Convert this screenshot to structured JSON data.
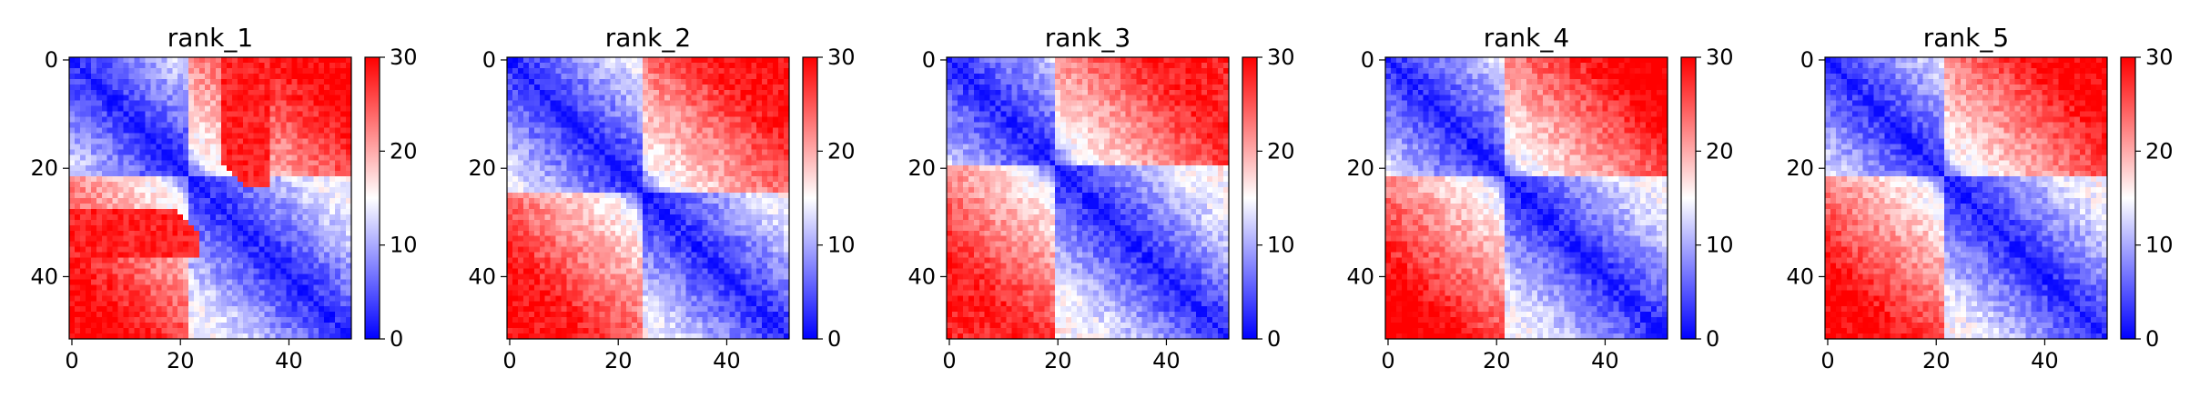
{
  "figure": {
    "colormap": "bwr",
    "colors": {
      "low": "#0000ff",
      "mid": "#ffffff",
      "high": "#ff0000"
    },
    "vmin": 0,
    "vmax": 30,
    "matrix_size": 52
  },
  "chart_data": [
    {
      "type": "heatmap",
      "title": "rank_1",
      "x_ticks": [
        "0",
        "20",
        "40"
      ],
      "y_ticks": [
        "0",
        "20",
        "40"
      ],
      "xlim": [
        0,
        51
      ],
      "ylim": [
        51,
        0
      ],
      "colorbar": {
        "range": [
          0,
          30
        ],
        "ticks": [
          "0",
          "10",
          "20",
          "30"
        ]
      },
      "values_description": "pairwise distance matrix, symmetric, near 0 on diagonal, high (~30) between residues 0-20 and 25-52 blocks",
      "blocks": [
        {
          "i_range": [
            0,
            22
          ],
          "j_range": [
            0,
            22
          ],
          "level": 8
        },
        {
          "i_range": [
            22,
            52
          ],
          "j_range": [
            22,
            52
          ],
          "level": 8
        },
        {
          "i_range": [
            0,
            22
          ],
          "j_range": [
            22,
            52
          ],
          "level": 26
        },
        {
          "i_range": [
            28,
            36
          ],
          "j_range": [
            0,
            22
          ],
          "level": 30
        }
      ]
    },
    {
      "type": "heatmap",
      "title": "rank_2",
      "x_ticks": [
        "0",
        "20",
        "40"
      ],
      "y_ticks": [
        "0",
        "20",
        "40"
      ],
      "xlim": [
        0,
        51
      ],
      "ylim": [
        51,
        0
      ],
      "colorbar": {
        "range": [
          0,
          30
        ],
        "ticks": [
          "0",
          "10",
          "20",
          "30"
        ]
      },
      "blocks": [
        {
          "i_range": [
            0,
            25
          ],
          "j_range": [
            0,
            25
          ],
          "level": 8
        },
        {
          "i_range": [
            25,
            52
          ],
          "j_range": [
            25,
            52
          ],
          "level": 8
        },
        {
          "i_range": [
            0,
            25
          ],
          "j_range": [
            25,
            52
          ],
          "level": 25
        }
      ]
    },
    {
      "type": "heatmap",
      "title": "rank_3",
      "x_ticks": [
        "0",
        "20",
        "40"
      ],
      "y_ticks": [
        "0",
        "20",
        "40"
      ],
      "xlim": [
        0,
        51
      ],
      "ylim": [
        51,
        0
      ],
      "colorbar": {
        "range": [
          0,
          30
        ],
        "ticks": [
          "0",
          "10",
          "20",
          "30"
        ]
      },
      "blocks": [
        {
          "i_range": [
            0,
            20
          ],
          "j_range": [
            0,
            20
          ],
          "level": 8
        },
        {
          "i_range": [
            20,
            52
          ],
          "j_range": [
            20,
            52
          ],
          "level": 9
        },
        {
          "i_range": [
            0,
            20
          ],
          "j_range": [
            20,
            52
          ],
          "level": 24
        }
      ]
    },
    {
      "type": "heatmap",
      "title": "rank_4",
      "x_ticks": [
        "0",
        "20",
        "40"
      ],
      "y_ticks": [
        "0",
        "20",
        "40"
      ],
      "xlim": [
        0,
        51
      ],
      "ylim": [
        51,
        0
      ],
      "colorbar": {
        "range": [
          0,
          30
        ],
        "ticks": [
          "0",
          "10",
          "20",
          "30"
        ]
      },
      "blocks": [
        {
          "i_range": [
            0,
            22
          ],
          "j_range": [
            0,
            22
          ],
          "level": 8
        },
        {
          "i_range": [
            22,
            52
          ],
          "j_range": [
            22,
            52
          ],
          "level": 7
        },
        {
          "i_range": [
            0,
            22
          ],
          "j_range": [
            22,
            52
          ],
          "level": 27
        }
      ]
    },
    {
      "type": "heatmap",
      "title": "rank_5",
      "x_ticks": [
        "0",
        "20",
        "40"
      ],
      "y_ticks": [
        "0",
        "20",
        "40"
      ],
      "xlim": [
        0,
        51
      ],
      "ylim": [
        51,
        0
      ],
      "colorbar": {
        "range": [
          0,
          30
        ],
        "ticks": [
          "0",
          "10",
          "20",
          "30"
        ]
      },
      "blocks": [
        {
          "i_range": [
            0,
            22
          ],
          "j_range": [
            0,
            22
          ],
          "level": 8
        },
        {
          "i_range": [
            22,
            52
          ],
          "j_range": [
            22,
            52
          ],
          "level": 8
        },
        {
          "i_range": [
            0,
            22
          ],
          "j_range": [
            22,
            52
          ],
          "level": 26
        }
      ]
    }
  ]
}
